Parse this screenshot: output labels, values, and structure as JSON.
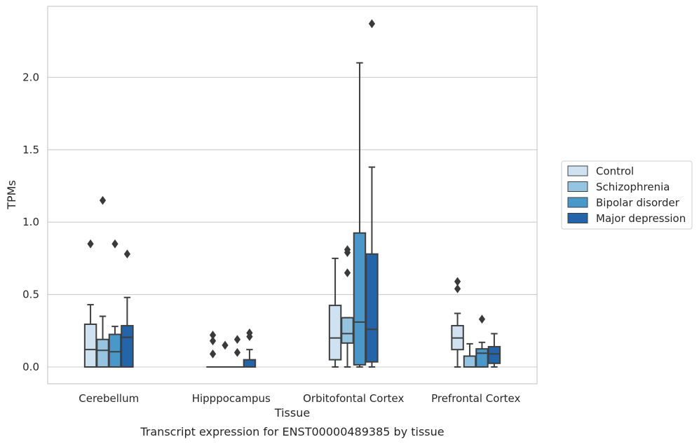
{
  "chart_data": {
    "type": "box",
    "title": "",
    "caption": "Transcript expression for ENST00000489385 by tissue",
    "xlabel": "Tissue",
    "ylabel": "TPMs",
    "ylim": [
      -0.115,
      2.48
    ],
    "yticks": [
      0.0,
      0.5,
      1.0,
      1.5,
      2.0
    ],
    "ytick_labels": [
      "0.0",
      "0.5",
      "1.0",
      "1.5",
      "2.0"
    ],
    "grid": "horizontal",
    "legend_position": "right",
    "categories": [
      "Cerebellum",
      "Hipppocampus",
      "Orbitofontal Cortex",
      "Prefrontal Cortex"
    ],
    "series": [
      {
        "name": "Control",
        "color": "#d0e1f2",
        "boxes": [
          {
            "whisker_low": 0.0,
            "q1": 0.0,
            "median": 0.12,
            "q3": 0.295,
            "whisker_high": 0.43,
            "outliers": [
              0.85
            ]
          },
          {
            "whisker_low": 0.0,
            "q1": 0.0,
            "median": 0.0,
            "q3": 0.0,
            "whisker_high": 0.0,
            "outliers": [
              0.09,
              0.18,
              0.22
            ]
          },
          {
            "whisker_low": 0.0,
            "q1": 0.05,
            "median": 0.2,
            "q3": 0.425,
            "whisker_high": 0.75,
            "outliers": []
          },
          {
            "whisker_low": 0.0,
            "q1": 0.12,
            "median": 0.2,
            "q3": 0.285,
            "whisker_high": 0.37,
            "outliers": [
              0.54,
              0.59
            ]
          }
        ]
      },
      {
        "name": "Schizophrenia",
        "color": "#94c4df",
        "boxes": [
          {
            "whisker_low": 0.0,
            "q1": 0.0,
            "median": 0.115,
            "q3": 0.19,
            "whisker_high": 0.35,
            "outliers": [
              1.15
            ]
          },
          {
            "whisker_low": 0.0,
            "q1": 0.0,
            "median": 0.0,
            "q3": 0.0,
            "whisker_high": 0.0,
            "outliers": [
              0.15
            ]
          },
          {
            "whisker_low": 0.0,
            "q1": 0.165,
            "median": 0.23,
            "q3": 0.34,
            "whisker_high": 0.34,
            "outliers": [
              0.65,
              0.79,
              0.81
            ]
          },
          {
            "whisker_low": 0.0,
            "q1": 0.0,
            "median": 0.0,
            "q3": 0.075,
            "whisker_high": 0.16,
            "outliers": []
          }
        ]
      },
      {
        "name": "Bipolar disorder",
        "color": "#4a98c9",
        "boxes": [
          {
            "whisker_low": 0.0,
            "q1": 0.0,
            "median": 0.105,
            "q3": 0.225,
            "whisker_high": 0.28,
            "outliers": [
              0.85
            ]
          },
          {
            "whisker_low": 0.0,
            "q1": 0.0,
            "median": 0.0,
            "q3": 0.0,
            "whisker_high": 0.0,
            "outliers": [
              0.1,
              0.19
            ]
          },
          {
            "whisker_low": 0.0,
            "q1": 0.015,
            "median": 0.31,
            "q3": 0.925,
            "whisker_high": 2.1,
            "outliers": []
          },
          {
            "whisker_low": 0.0,
            "q1": 0.0,
            "median": 0.095,
            "q3": 0.125,
            "whisker_high": 0.17,
            "outliers": [
              0.33
            ]
          }
        ]
      },
      {
        "name": "Major depression",
        "color": "#2464a8",
        "boxes": [
          {
            "whisker_low": 0.0,
            "q1": 0.0,
            "median": 0.205,
            "q3": 0.285,
            "whisker_high": 0.48,
            "outliers": [
              0.78
            ]
          },
          {
            "whisker_low": 0.0,
            "q1": 0.0,
            "median": 0.0,
            "q3": 0.05,
            "whisker_high": 0.12,
            "outliers": [
              0.21,
              0.235
            ]
          },
          {
            "whisker_low": 0.0,
            "q1": 0.035,
            "median": 0.26,
            "q3": 0.78,
            "whisker_high": 1.38,
            "outliers": [
              2.37
            ]
          },
          {
            "whisker_low": 0.0,
            "q1": 0.025,
            "median": 0.09,
            "q3": 0.14,
            "whisker_high": 0.23,
            "outliers": []
          }
        ]
      }
    ]
  }
}
